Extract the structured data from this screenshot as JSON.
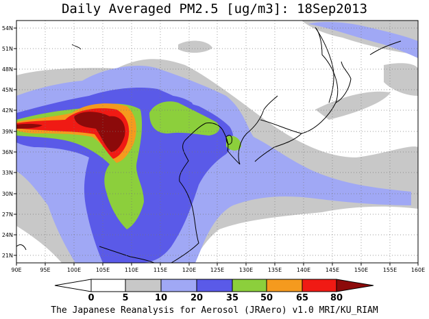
{
  "title": "Daily Averaged PM2.5 [ug/m3]: 18Sep2013",
  "footer": "The Japanese Reanalysis for Aerosol (JRAero) v1.0 MRI/KU_RIAM",
  "map": {
    "variable": "PM2.5 daily average",
    "units": "ug/m3",
    "date": "18Sep2013",
    "lon_range": [
      90,
      160
    ],
    "lat_range": [
      20,
      55
    ],
    "lon_ticks": [
      "90E",
      "95E",
      "100E",
      "105E",
      "110E",
      "115E",
      "120E",
      "125E",
      "130E",
      "135E",
      "140E",
      "145E",
      "150E",
      "155E",
      "160E"
    ],
    "lat_ticks": [
      "21N",
      "24N",
      "27N",
      "30N",
      "33N",
      "36N",
      "39N",
      "42N",
      "45N",
      "48N",
      "51N",
      "54N"
    ],
    "grid": "dotted"
  },
  "colorbar": {
    "levels": [
      "0",
      "5",
      "10",
      "20",
      "35",
      "50",
      "65",
      "80"
    ],
    "colors": [
      "#ffffff",
      "#c8c8c8",
      "#a0a8f5",
      "#5a5ae8",
      "#8ccf3c",
      "#f59a1e",
      "#f01a14",
      "#8c0a0a"
    ]
  }
}
